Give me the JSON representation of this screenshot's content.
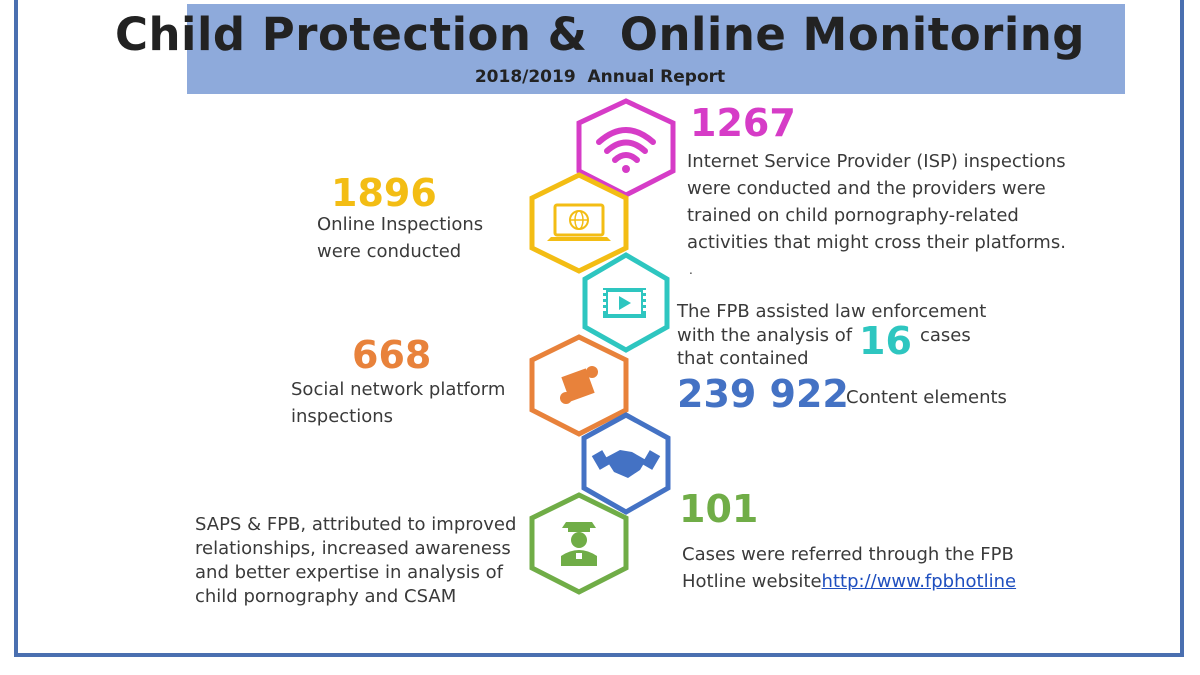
{
  "header": {
    "title": "Child Protection &  Online Monitoring",
    "subtitle": "2018/2019  Annual Report"
  },
  "colors": {
    "frame": "#4a6fb0",
    "banner": "#8eaadb",
    "magenta": "#d63cc7",
    "yellow": "#f3bd14",
    "teal": "#2ec6c0",
    "orange": "#e8823b",
    "blue": "#4472c4",
    "green": "#70ad47"
  },
  "icons": [
    "wifi-icon",
    "laptop-globe-icon",
    "video-play-icon",
    "puzzle-icon",
    "handshake-icon",
    "police-officer-icon"
  ],
  "stats": {
    "isp": {
      "number": "1267",
      "lines": [
        "Internet Service Provider (ISP) inspections",
        "were conducted and the providers were",
        "trained on child pornography-related",
        "activities that might cross their platforms."
      ],
      "trailing": "."
    },
    "online": {
      "number": "1896",
      "lines": [
        "Online Inspections",
        "were conducted"
      ]
    },
    "law": {
      "line1": "The FPB assisted law enforcement",
      "line2a": "with the analysis of",
      "number": "16",
      "line2b": "cases",
      "line3": "that contained",
      "content_number": "239 922",
      "content_label": "Content elements"
    },
    "social": {
      "number": "668",
      "lines": [
        "Social network platform",
        "inspections"
      ]
    },
    "saps": {
      "lines": [
        "SAPS & FPB, attributed to improved",
        "relationships, increased awareness",
        "and better expertise in analysis of",
        "child pornography and CSAM"
      ]
    },
    "hotline": {
      "number": "101",
      "line1": "Cases were referred through the FPB",
      "line2": "Hotline website",
      "link": "http://www.fpbhotline"
    }
  }
}
